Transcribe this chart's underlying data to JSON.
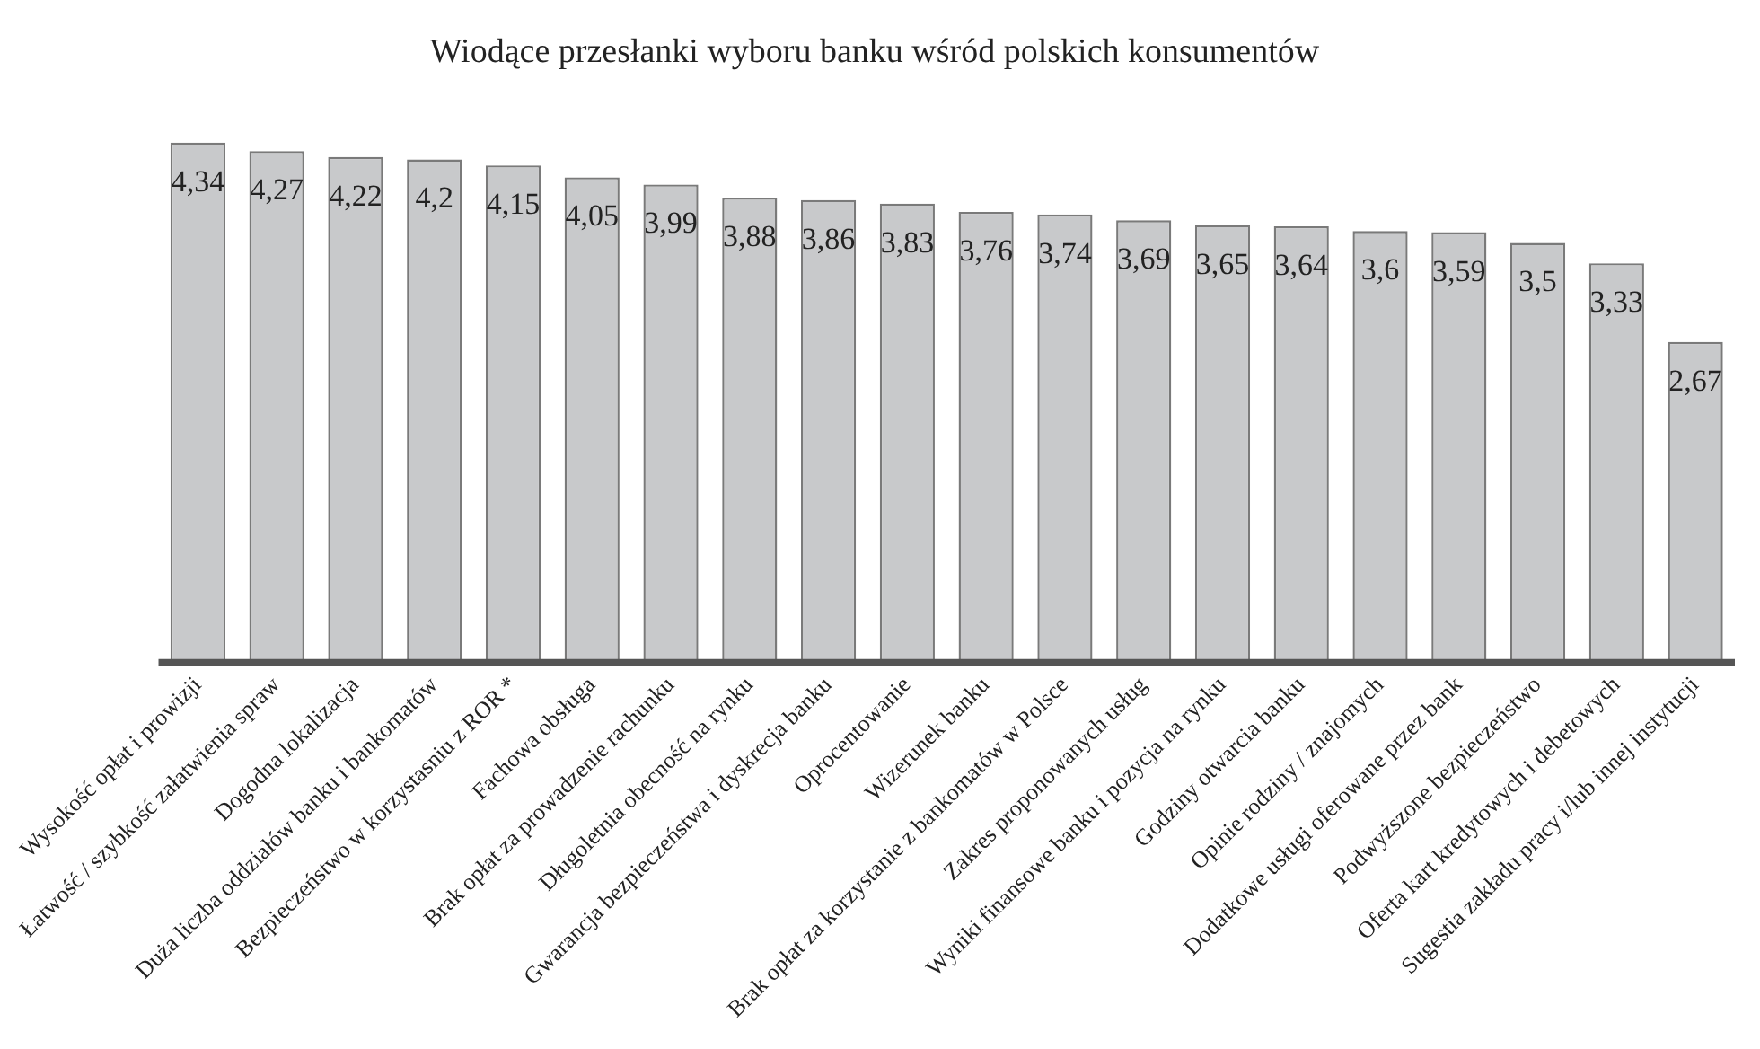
{
  "chart_data": {
    "type": "bar",
    "title": "Wiodące przesłanki wyboru banku wśród polskich konsumentów",
    "categories": [
      "Wysokość opłat i prowizji",
      "Łatwość / szybkość załatwienia spraw",
      "Dogodna lokalizacja",
      "Duża liczba oddziałów banku i bankomatów",
      "Bezpieczeństwo w korzystasniu z ROR *",
      "Fachowa obsługa",
      "Brak opłat za prowadzenie rachunku",
      "Długoletnia obecność na rynku",
      "Gwarancja bezpieczeństwa i dyskrecja banku",
      "Oprocentowanie",
      "Wizerunek banku",
      "Brak opłat za korzystanie z bankomatów w Polsce",
      "Zakres proponowanych usług",
      "Wyniki finansowe banku i pozycja na rynku",
      "Godziny otwarcia banku",
      "Opinie rodziny / znajomych",
      "Dodatkowe usługi oferowane przez bank",
      "Podwyższone bezpieczeństwo",
      "Oferta kart kredytowych i debetowych",
      "Sugestia zakładu pracy i/lub innej instytucji"
    ],
    "values": [
      4.34,
      4.27,
      4.22,
      4.2,
      4.15,
      4.05,
      3.99,
      3.88,
      3.86,
      3.83,
      3.76,
      3.74,
      3.69,
      3.65,
      3.64,
      3.6,
      3.59,
      3.5,
      3.33,
      2.67
    ],
    "value_labels": [
      "4,34",
      "4,27",
      "4,22",
      "4,2",
      "4,15",
      "4,05",
      "3,99",
      "3,88",
      "3,86",
      "3,83",
      "3,76",
      "3,74",
      "3,69",
      "3,65",
      "3,64",
      "3,6",
      "3,59",
      "3,5",
      "3,33",
      "2,67"
    ],
    "color": "#c8c9cb",
    "grid": false,
    "legend": false
  }
}
